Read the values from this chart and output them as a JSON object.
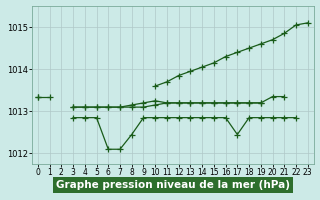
{
  "x": [
    0,
    1,
    2,
    3,
    4,
    5,
    6,
    7,
    8,
    9,
    10,
    11,
    12,
    13,
    14,
    15,
    16,
    17,
    18,
    19,
    20,
    21,
    22,
    23
  ],
  "line_rising": [
    1013.35,
    null,
    null,
    null,
    null,
    null,
    null,
    null,
    null,
    null,
    1013.6,
    1013.7,
    1013.85,
    1013.95,
    1014.05,
    1014.15,
    1014.3,
    1014.4,
    1014.5,
    1014.6,
    1014.7,
    1014.85,
    1015.05,
    1015.1
  ],
  "line_flat_top": [
    1013.35,
    1013.35,
    null,
    null,
    null,
    null,
    null,
    null,
    null,
    null,
    null,
    null,
    null,
    null,
    null,
    null,
    null,
    null,
    null,
    null,
    null,
    null,
    null,
    null
  ],
  "line_mid1": [
    null,
    null,
    null,
    1013.1,
    1013.1,
    1013.1,
    1013.1,
    1013.1,
    1013.15,
    1013.2,
    1013.25,
    1013.2,
    1013.2,
    1013.2,
    1013.2,
    1013.2,
    1013.2,
    1013.2,
    1013.2,
    1013.2,
    1013.35,
    1013.35,
    null,
    null
  ],
  "line_mid2": [
    null,
    null,
    null,
    1013.1,
    1013.1,
    1013.1,
    1013.1,
    1013.1,
    1013.1,
    1013.1,
    1013.15,
    1013.2,
    1013.2,
    1013.2,
    1013.2,
    1013.2,
    1013.2,
    1013.2,
    1013.2,
    1013.2,
    null,
    null,
    null,
    null
  ],
  "line_dip": [
    null,
    null,
    null,
    1012.85,
    1012.85,
    1012.85,
    1012.1,
    1012.1,
    1012.45,
    1012.85,
    1012.85,
    1012.85,
    1012.85,
    1012.85,
    1012.85,
    1012.85,
    1012.85,
    1012.45,
    1012.85,
    1012.85,
    1012.85,
    1012.85,
    1012.85,
    null
  ],
  "bg_color": "#cceae7",
  "line_color": "#1a5c1a",
  "grid_color": "#b0c8c8",
  "title": "Graphe pression niveau de la mer (hPa)",
  "xlim_min": -0.5,
  "xlim_max": 23.5,
  "ylim_min": 1011.75,
  "ylim_max": 1015.5,
  "yticks": [
    1012,
    1013,
    1014,
    1015
  ],
  "xticks": [
    0,
    1,
    2,
    3,
    4,
    5,
    6,
    7,
    8,
    9,
    10,
    11,
    12,
    13,
    14,
    15,
    16,
    17,
    18,
    19,
    20,
    21,
    22,
    23
  ],
  "marker": "+",
  "markersize": 4,
  "linewidth": 0.9,
  "title_fontsize": 7.5,
  "tick_fontsize": 5.5,
  "label_color": "#ffffff",
  "label_bg": "#2d6e2d"
}
